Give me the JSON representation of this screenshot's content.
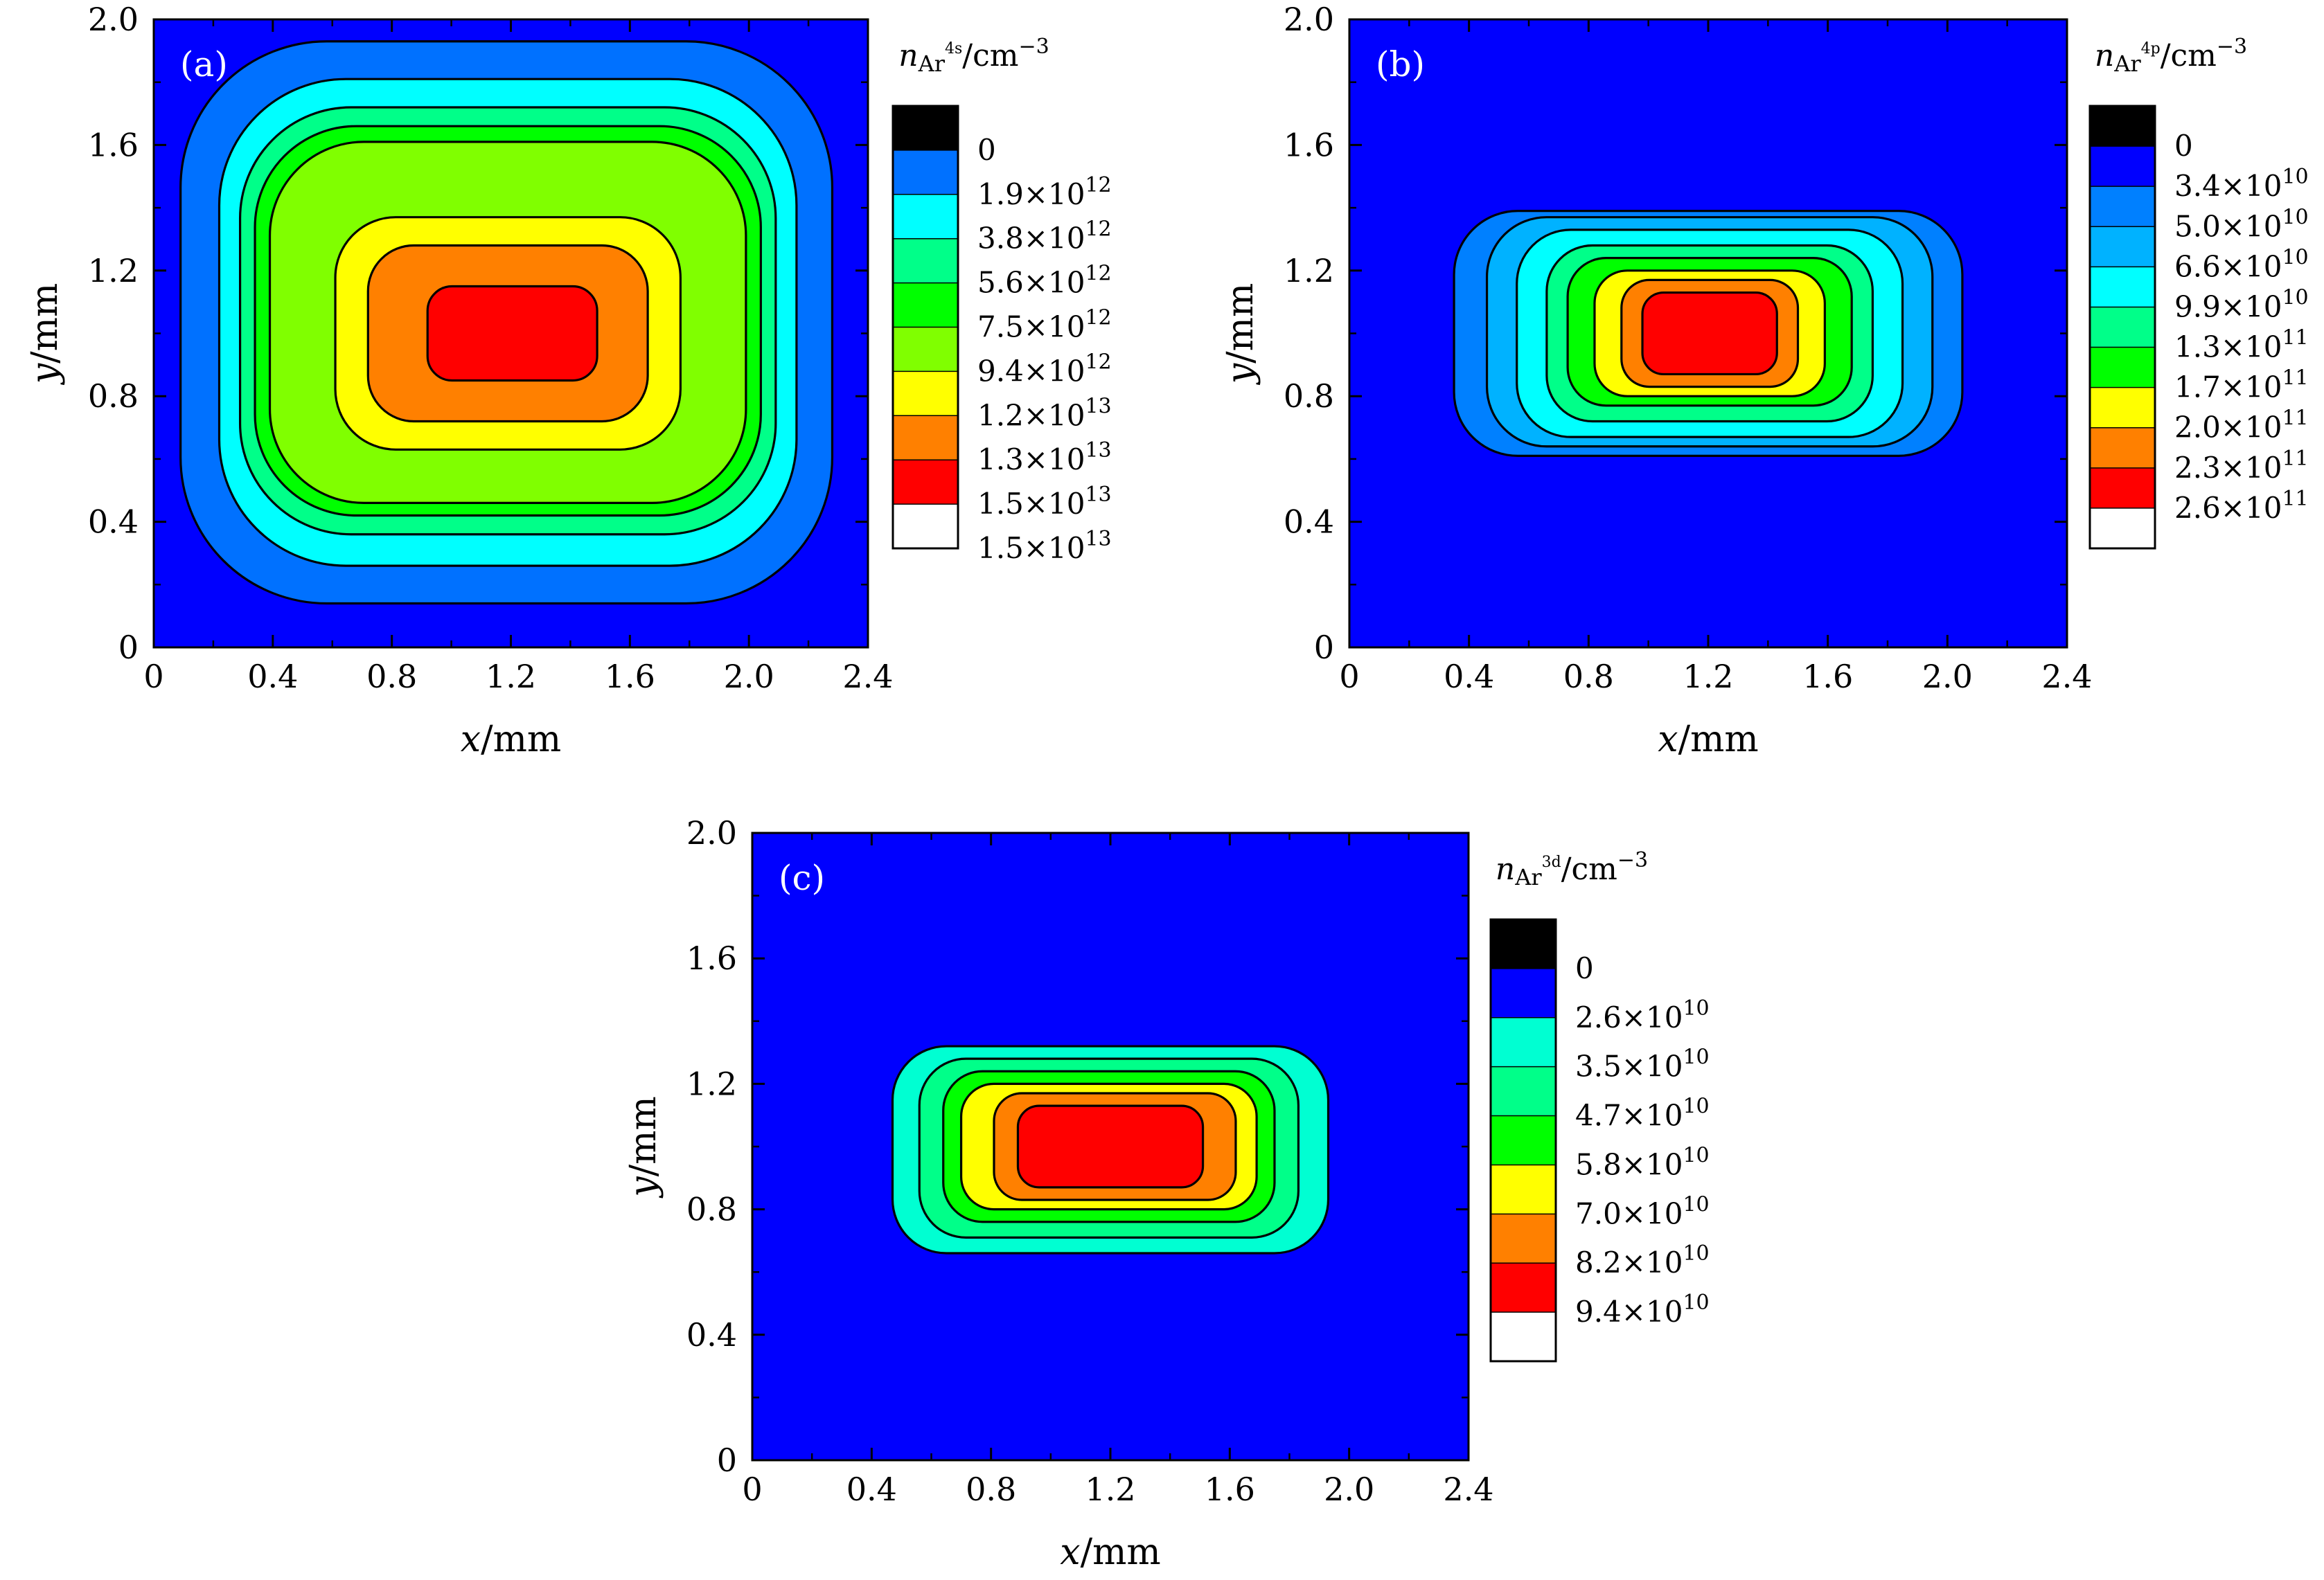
{
  "chart_data": [
    {
      "type": "heatmap",
      "panel_label": "(a)",
      "xlabel_var": "x",
      "xlabel_unit": "/mm",
      "ylabel_var": "y",
      "ylabel_unit": "/mm",
      "xlim": [
        0,
        2.4
      ],
      "ylim": [
        0,
        2.0
      ],
      "xticks": [
        "0",
        "0.4",
        "0.8",
        "1.2",
        "1.6",
        "2.0",
        "2.4"
      ],
      "yticks": [
        "0",
        "0.4",
        "0.8",
        "1.2",
        "1.6",
        "2.0"
      ],
      "background_color": "#0000ff",
      "colorbar": {
        "title_var": "n",
        "title_sub": "Ar",
        "title_sup": "4s",
        "title_unit": "/cm",
        "title_unit_exp": "−3",
        "colors": [
          "#000000",
          "#0071ff",
          "#00ffff",
          "#00ff89",
          "#00ff00",
          "#80ff00",
          "#ffff00",
          "#ff8000",
          "#ff0000",
          "#ffffff"
        ],
        "levels": [
          {
            "mantissa": "0",
            "exp": ""
          },
          {
            "mantissa": "1.9",
            "exp": "12"
          },
          {
            "mantissa": "3.8",
            "exp": "12"
          },
          {
            "mantissa": "5.6",
            "exp": "12"
          },
          {
            "mantissa": "7.5",
            "exp": "12"
          },
          {
            "mantissa": "9.4",
            "exp": "12"
          },
          {
            "mantissa": "1.2",
            "exp": "13"
          },
          {
            "mantissa": "1.3",
            "exp": "13"
          },
          {
            "mantissa": "1.5",
            "exp": "13"
          },
          {
            "mantissa": "1.5",
            "exp": "13"
          }
        ]
      },
      "contours": [
        {
          "x": [
            0.09,
            2.28
          ],
          "y": [
            0.14,
            1.93
          ],
          "color": "#0071ff"
        },
        {
          "x": [
            0.22,
            2.16
          ],
          "y": [
            0.26,
            1.81
          ],
          "color": "#00ffff"
        },
        {
          "x": [
            0.29,
            2.09
          ],
          "y": [
            0.36,
            1.72
          ],
          "color": "#00ff89"
        },
        {
          "x": [
            0.34,
            2.04
          ],
          "y": [
            0.42,
            1.66
          ],
          "color": "#00ff00"
        },
        {
          "x": [
            0.39,
            1.99
          ],
          "y": [
            0.46,
            1.61
          ],
          "color": "#80ff00"
        },
        {
          "x": [
            0.61,
            1.77
          ],
          "y": [
            0.63,
            1.37
          ],
          "color": "#ffff00"
        },
        {
          "x": [
            0.72,
            1.66
          ],
          "y": [
            0.72,
            1.28
          ],
          "color": "#ff8000"
        },
        {
          "x": [
            0.92,
            1.49
          ],
          "y": [
            0.85,
            1.15
          ],
          "color": "#ff0000"
        }
      ]
    },
    {
      "type": "heatmap",
      "panel_label": "(b)",
      "xlabel_var": "x",
      "xlabel_unit": "/mm",
      "ylabel_var": "y",
      "ylabel_unit": "/mm",
      "xlim": [
        0,
        2.4
      ],
      "ylim": [
        0,
        2.0
      ],
      "xticks": [
        "0",
        "0.4",
        "0.8",
        "1.2",
        "1.6",
        "2.0",
        "2.4"
      ],
      "yticks": [
        "0",
        "0.4",
        "0.8",
        "1.2",
        "1.6",
        "2.0"
      ],
      "background_color": "#0000ff",
      "colorbar": {
        "title_var": "n",
        "title_sub": "Ar",
        "title_sup": "4p",
        "title_unit": "/cm",
        "title_unit_exp": "−3",
        "colors": [
          "#000000",
          "#0000ff",
          "#0080ff",
          "#00b2ff",
          "#00ffff",
          "#00ff89",
          "#00ff00",
          "#ffff00",
          "#ff8000",
          "#ff0000",
          "#ffffff"
        ],
        "levels": [
          {
            "mantissa": "0",
            "exp": ""
          },
          {
            "mantissa": "3.4",
            "exp": "10"
          },
          {
            "mantissa": "5.0",
            "exp": "10"
          },
          {
            "mantissa": "6.6",
            "exp": "10"
          },
          {
            "mantissa": "9.9",
            "exp": "10"
          },
          {
            "mantissa": "1.3",
            "exp": "11"
          },
          {
            "mantissa": "1.7",
            "exp": "11"
          },
          {
            "mantissa": "2.0",
            "exp": "11"
          },
          {
            "mantissa": "2.3",
            "exp": "11"
          },
          {
            "mantissa": "2.6",
            "exp": "11"
          }
        ]
      },
      "contours": [
        {
          "x": [
            0.35,
            2.05
          ],
          "y": [
            0.61,
            1.39
          ],
          "color": "#0080ff"
        },
        {
          "x": [
            0.46,
            1.95
          ],
          "y": [
            0.64,
            1.37
          ],
          "color": "#00b2ff"
        },
        {
          "x": [
            0.56,
            1.85
          ],
          "y": [
            0.67,
            1.33
          ],
          "color": "#00ffff"
        },
        {
          "x": [
            0.66,
            1.75
          ],
          "y": [
            0.72,
            1.28
          ],
          "color": "#00ff89"
        },
        {
          "x": [
            0.73,
            1.68
          ],
          "y": [
            0.77,
            1.24
          ],
          "color": "#00ff00"
        },
        {
          "x": [
            0.82,
            1.59
          ],
          "y": [
            0.8,
            1.2
          ],
          "color": "#ffff00"
        },
        {
          "x": [
            0.91,
            1.5
          ],
          "y": [
            0.83,
            1.17
          ],
          "color": "#ff8000"
        },
        {
          "x": [
            0.98,
            1.43
          ],
          "y": [
            0.87,
            1.13
          ],
          "color": "#ff0000"
        }
      ]
    },
    {
      "type": "heatmap",
      "panel_label": "(c)",
      "xlabel_var": "x",
      "xlabel_unit": "/mm",
      "ylabel_var": "y",
      "ylabel_unit": "/mm",
      "xlim": [
        0,
        2.4
      ],
      "ylim": [
        0,
        2.0
      ],
      "xticks": [
        "0",
        "0.4",
        "0.8",
        "1.2",
        "1.6",
        "2.0",
        "2.4"
      ],
      "yticks": [
        "0",
        "0.4",
        "0.8",
        "1.2",
        "1.6",
        "2.0"
      ],
      "background_color": "#0000ff",
      "colorbar": {
        "title_var": "n",
        "title_sub": "Ar",
        "title_sup": "3d",
        "title_unit": "/cm",
        "title_unit_exp": "−3",
        "colors": [
          "#000000",
          "#0000ff",
          "#00ffd2",
          "#00ff89",
          "#00ff00",
          "#ffff00",
          "#ff8000",
          "#ff0000",
          "#ffffff"
        ],
        "levels": [
          {
            "mantissa": "0",
            "exp": ""
          },
          {
            "mantissa": "2.6",
            "exp": "10"
          },
          {
            "mantissa": "3.5",
            "exp": "10"
          },
          {
            "mantissa": "4.7",
            "exp": "10"
          },
          {
            "mantissa": "5.8",
            "exp": "10"
          },
          {
            "mantissa": "7.0",
            "exp": "10"
          },
          {
            "mantissa": "8.2",
            "exp": "10"
          },
          {
            "mantissa": "9.4",
            "exp": "10"
          }
        ]
      },
      "contours": [
        {
          "x": [
            0.47,
            1.93
          ],
          "y": [
            0.66,
            1.32
          ],
          "color": "#00ffd2"
        },
        {
          "x": [
            0.56,
            1.83
          ],
          "y": [
            0.71,
            1.28
          ],
          "color": "#00ff89"
        },
        {
          "x": [
            0.64,
            1.75
          ],
          "y": [
            0.76,
            1.24
          ],
          "color": "#00ff00"
        },
        {
          "x": [
            0.7,
            1.69
          ],
          "y": [
            0.8,
            1.2
          ],
          "color": "#ffff00"
        },
        {
          "x": [
            0.81,
            1.62
          ],
          "y": [
            0.83,
            1.17
          ],
          "color": "#ff8000"
        },
        {
          "x": [
            0.89,
            1.51
          ],
          "y": [
            0.87,
            1.13
          ],
          "color": "#ff0000"
        }
      ]
    }
  ]
}
